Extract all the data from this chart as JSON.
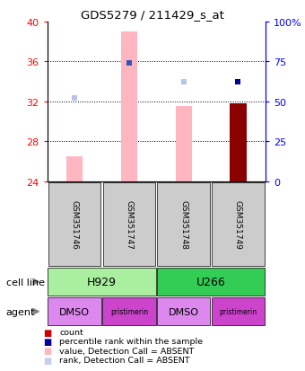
{
  "title": "GDS5279 / 211429_s_at",
  "samples": [
    "GSM351746",
    "GSM351747",
    "GSM351748",
    "GSM351749"
  ],
  "bar_values_absent": [
    26.5,
    39.0,
    31.5,
    31.8
  ],
  "bar_colors_absent": [
    "#ffb6c1",
    "#ffb6c1",
    "#ffb6c1",
    "#8b0000"
  ],
  "rank_percentiles": [
    52,
    74,
    62,
    62
  ],
  "rank_colors": [
    "#b8c4e8",
    "#3355bb",
    "#b8c4e8",
    "#000099"
  ],
  "ylim_left": [
    24,
    40
  ],
  "ylim_right": [
    0,
    100
  ],
  "yticks_left": [
    24,
    28,
    32,
    36,
    40
  ],
  "ytick_labels_left": [
    "24",
    "28",
    "32",
    "36",
    "40"
  ],
  "yticks_right": [
    0,
    25,
    50,
    75,
    100
  ],
  "ytick_labels_right": [
    "0",
    "25",
    "50",
    "75",
    "100%"
  ],
  "grid_lines": [
    28,
    32,
    36
  ],
  "cell_line_spans": [
    [
      0,
      2,
      "H929",
      "#aaeea0"
    ],
    [
      2,
      4,
      "U266",
      "#33cc55"
    ]
  ],
  "agent_labels": [
    "DMSO",
    "pristimerin",
    "DMSO",
    "pristimerin"
  ],
  "agent_color_dmso": "#dd88ee",
  "agent_color_prist": "#cc44cc",
  "gsm_box_color": "#cccccc",
  "base_value": 24,
  "legend_items": [
    [
      "#cc0000",
      "count"
    ],
    [
      "#000099",
      "percentile rank within the sample"
    ],
    [
      "#ffb6c1",
      "value, Detection Call = ABSENT"
    ],
    [
      "#c8ccee",
      "rank, Detection Call = ABSENT"
    ]
  ]
}
